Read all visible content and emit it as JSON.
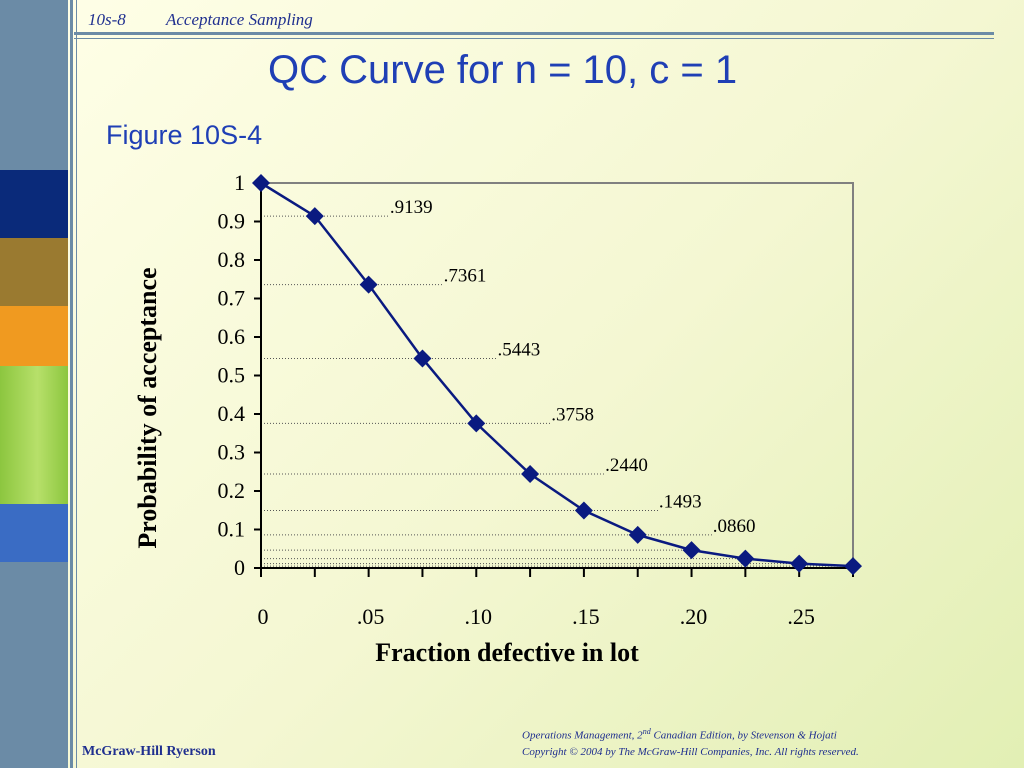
{
  "header": {
    "slide_code": "10s-8",
    "section": "Acceptance Sampling"
  },
  "title": "QC Curve for n = 10, c = 1",
  "subtitle": "Figure 10S-4",
  "footer": {
    "book_prefix": "Operations Management, 2",
    "book_superscript": "nd",
    "book_suffix": " Canadian Edition, by Stevenson & Hojati",
    "copyright": "Copyright © 2004 by The McGraw-Hill Companies, Inc.  All rights reserved."
  },
  "publisher": "McGraw-Hill Ryerson",
  "colors": {
    "accent": "#6b8ba6",
    "title": "#1f3fb5",
    "series": "#0a1a80",
    "bands": [
      "#0a2a7a",
      "#9a7a30",
      "#f09a20",
      "#8cc63f",
      "#3a6cc4"
    ]
  },
  "chart_data": {
    "type": "line",
    "xlabel": "Fraction defective in lot",
    "ylabel": "Probability of acceptance",
    "xlim": [
      0,
      0.275
    ],
    "ylim": [
      0,
      1
    ],
    "x_ticks": [
      0,
      0.05,
      0.1,
      0.15,
      0.2,
      0.25
    ],
    "x_tick_labels": [
      "0",
      ".05",
      ".10",
      ".15",
      ".20",
      ".25"
    ],
    "y_ticks": [
      0,
      0.1,
      0.2,
      0.3,
      0.4,
      0.5,
      0.6,
      0.7,
      0.8,
      0.9,
      1
    ],
    "y_tick_labels": [
      "0",
      "0.1",
      "0.2",
      "0.3",
      "0.4",
      "0.5",
      "0.6",
      "0.7",
      "0.8",
      "0.9",
      "1"
    ],
    "series": [
      {
        "x": [
          0,
          0.025,
          0.05,
          0.075,
          0.1,
          0.125,
          0.15,
          0.175,
          0.2,
          0.225,
          0.25,
          0.275
        ],
        "y": [
          1.0,
          0.9139,
          0.7361,
          0.5443,
          0.3758,
          0.244,
          0.1493,
          0.086,
          0.0464,
          0.0244,
          0.0114,
          0.005
        ]
      }
    ],
    "annotations": [
      {
        "label": ".9139",
        "x": 0.025,
        "y": 0.9139
      },
      {
        "label": ".7361",
        "x": 0.05,
        "y": 0.7361
      },
      {
        "label": ".5443",
        "x": 0.075,
        "y": 0.5443
      },
      {
        "label": ".3758",
        "x": 0.1,
        "y": 0.3758
      },
      {
        "label": ".2440",
        "x": 0.125,
        "y": 0.244
      },
      {
        "label": ".1493",
        "x": 0.15,
        "y": 0.1493
      },
      {
        "label": ".0860",
        "x": 0.175,
        "y": 0.086
      }
    ],
    "grid": false,
    "legend": "none"
  }
}
